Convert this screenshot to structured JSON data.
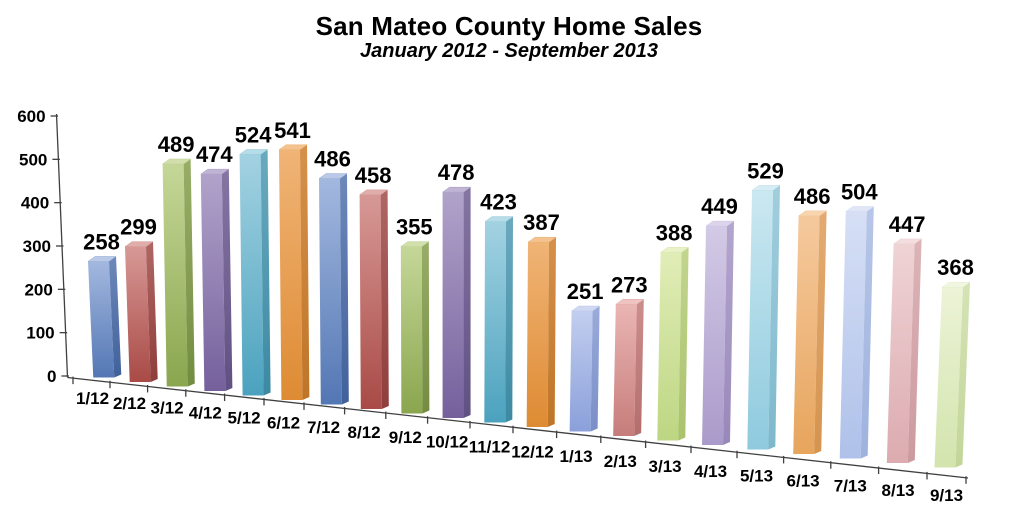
{
  "header": {
    "title": "San Mateo County Home Sales",
    "subtitle": "January 2012 - September 2013"
  },
  "chart_data": {
    "type": "bar",
    "title": "San Mateo County Home Sales",
    "subtitle": "January 2012 - September 2013",
    "projection": "3d",
    "vary_colors_by_point": true,
    "grid": false,
    "legend": "none",
    "xlabel": "",
    "ylabel": "",
    "ylim": [
      0,
      600
    ],
    "yticks": [
      0,
      100,
      200,
      300,
      400,
      500,
      600
    ],
    "categories": [
      "1/12",
      "2/12",
      "3/12",
      "4/12",
      "5/12",
      "6/12",
      "7/12",
      "8/12",
      "9/12",
      "10/12",
      "11/12",
      "12/12",
      "1/13",
      "2/13",
      "3/13",
      "4/13",
      "5/13",
      "6/13",
      "7/13",
      "8/13",
      "9/13"
    ],
    "values": [
      258,
      299,
      489,
      474,
      524,
      541,
      486,
      458,
      355,
      478,
      423,
      387,
      251,
      273,
      388,
      449,
      529,
      486,
      504,
      447,
      368
    ],
    "point_styles": [
      "blue.full",
      "red.full",
      "green.full",
      "purple.full",
      "cyan.full",
      "orange.full",
      "blue.full",
      "red.full",
      "green.full",
      "purple.full",
      "cyan.full",
      "orange.full",
      "blue.light",
      "red.light",
      "green.light",
      "purple.light",
      "cyan.light",
      "orange.light",
      "blue.lighter",
      "red.lighter",
      "green.lighter"
    ],
    "palette": {
      "full": {
        "blue": {
          "top": "#A3B8DF",
          "bottom": "#5377B4",
          "side": "#41619B",
          "cap": "#B9C9E7"
        },
        "red": {
          "top": "#D79996",
          "bottom": "#A94A46",
          "side": "#8F3E3B",
          "cap": "#E1ADAA"
        },
        "green": {
          "top": "#C5D798",
          "bottom": "#8AA64E",
          "side": "#748C40",
          "cap": "#D1E0AB"
        },
        "purple": {
          "top": "#B0A3CA",
          "bottom": "#75609C",
          "side": "#615083",
          "cap": "#BFB4D4"
        },
        "cyan": {
          "top": "#A3D2E2",
          "bottom": "#4BA2BE",
          "side": "#3C89A2",
          "cap": "#B6DCE8"
        },
        "orange": {
          "top": "#F0B476",
          "bottom": "#DE8B33",
          "side": "#BF7527",
          "cap": "#F4C28D"
        }
      },
      "light": {
        "blue": {
          "top": "#C2CEEF",
          "bottom": "#8BA0DB",
          "side": "#7A8FC8",
          "cap": "#CFD8F3"
        },
        "red": {
          "top": "#EAB5B3",
          "bottom": "#C67D7B",
          "side": "#B36E6C",
          "cap": "#EFC3C1"
        },
        "green": {
          "top": "#E1EDB7",
          "bottom": "#BDD682",
          "side": "#AAC26C",
          "cap": "#E9F2C6"
        },
        "purple": {
          "top": "#D3CAE6",
          "bottom": "#AA9ACA",
          "side": "#9888BA",
          "cap": "#DCD4EB"
        },
        "cyan": {
          "top": "#CBE8F1",
          "bottom": "#8ECADE",
          "side": "#7EB8CC",
          "cap": "#D7EDF5"
        },
        "orange": {
          "top": "#F5C99D",
          "bottom": "#E7A55D",
          "side": "#D5934F",
          "cap": "#F8D5AF"
        }
      },
      "lighter": {
        "blue": {
          "top": "#D6DFF5",
          "bottom": "#AFC1EA",
          "side": "#9EB2DE",
          "cap": "#E0E6F8"
        },
        "red": {
          "top": "#EFD3D5",
          "bottom": "#DCABB0",
          "side": "#CC9A9F",
          "cap": "#F3DDDF"
        },
        "green": {
          "top": "#ECF3D7",
          "bottom": "#D3E4AD",
          "side": "#C2D699",
          "cap": "#F0F6DF"
        }
      }
    },
    "axis_color": "#404040",
    "text_color": "#000000",
    "background_color": "#FFFFFF"
  }
}
